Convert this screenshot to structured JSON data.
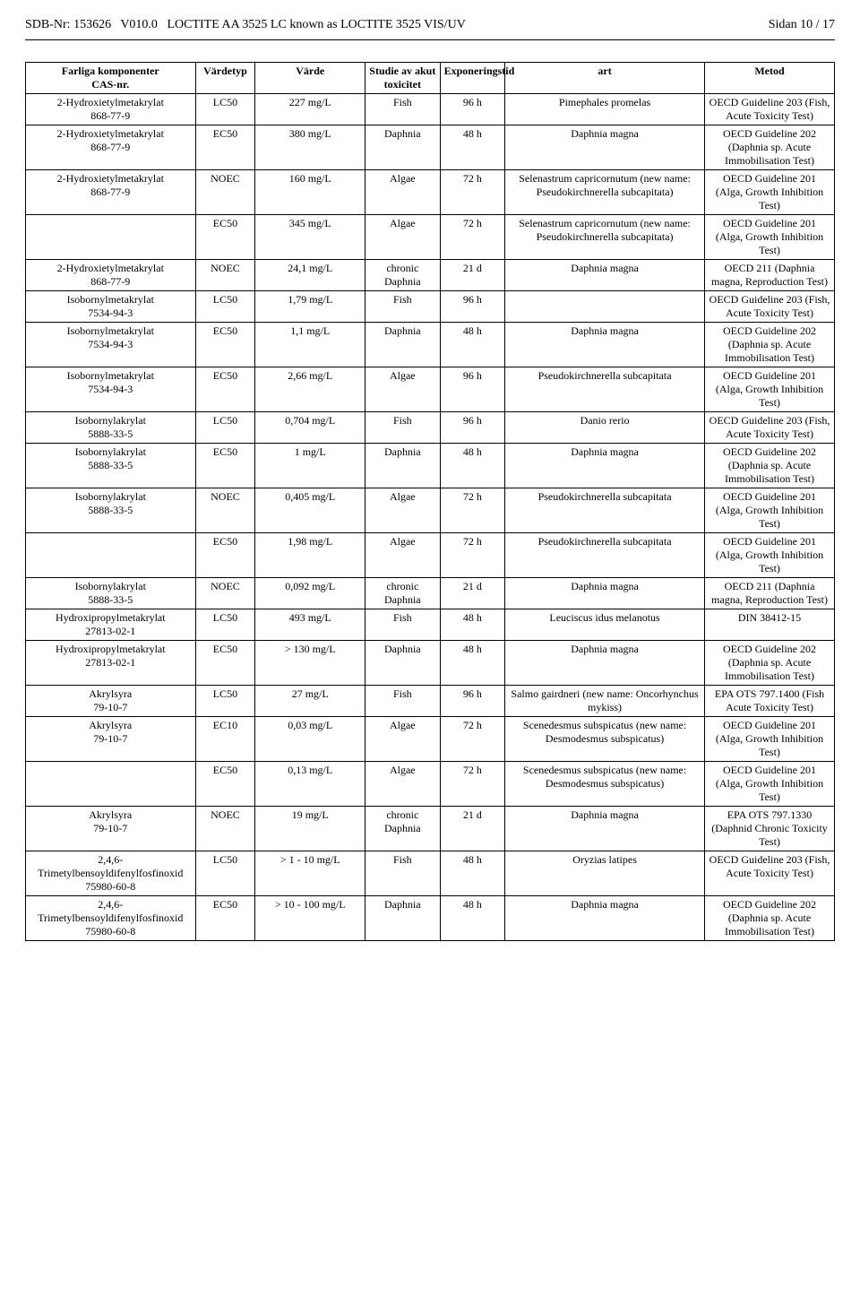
{
  "header": {
    "sdb_label": "SDB-Nr:",
    "sdb_nr": "153626",
    "version": "V010.0",
    "product": "LOCTITE AA 3525 LC known as  LOCTITE 3525 VIS/UV",
    "page_label": "Sidan 10 / 17"
  },
  "table": {
    "headers": {
      "comp": "Farliga komponenter\nCAS-nr.",
      "vtype": "Värdetyp",
      "value": "Värde",
      "study": "Studie av akut toxicitet",
      "exp": "Exponeringstid",
      "art": "art",
      "method": "Metod"
    },
    "rows": [
      {
        "comp": "2-Hydroxietylmetakrylat\n868-77-9",
        "vtype": "LC50",
        "value": "227 mg/L",
        "study": "Fish",
        "exp": "96 h",
        "art": "Pimephales promelas",
        "method": "OECD Guideline 203 (Fish, Acute Toxicity Test)"
      },
      {
        "comp": "2-Hydroxietylmetakrylat\n868-77-9",
        "vtype": "EC50",
        "value": "380 mg/L",
        "study": "Daphnia",
        "exp": "48 h",
        "art": "Daphnia magna",
        "method": "OECD Guideline 202 (Daphnia sp. Acute Immobilisation Test)"
      },
      {
        "comp": "2-Hydroxietylmetakrylat\n868-77-9",
        "vtype": "NOEC",
        "value": "160 mg/L",
        "study": "Algae",
        "exp": "72 h",
        "art": "Selenastrum capricornutum (new name: Pseudokirchnerella subcapitata)",
        "method": "OECD Guideline 201 (Alga, Growth Inhibition Test)"
      },
      {
        "comp": "",
        "vtype": "EC50",
        "value": "345 mg/L",
        "study": "Algae",
        "exp": "72 h",
        "art": "Selenastrum capricornutum (new name: Pseudokirchnerella subcapitata)",
        "method": "OECD Guideline 201 (Alga, Growth Inhibition Test)"
      },
      {
        "comp": "2-Hydroxietylmetakrylat\n868-77-9",
        "vtype": "NOEC",
        "value": "24,1 mg/L",
        "study": "chronic Daphnia",
        "exp": "21 d",
        "art": "Daphnia magna",
        "method": "OECD 211 (Daphnia magna, Reproduction Test)"
      },
      {
        "comp": "Isobornylmetakrylat\n7534-94-3",
        "vtype": "LC50",
        "value": "1,79 mg/L",
        "study": "Fish",
        "exp": "96 h",
        "art": "",
        "method": "OECD Guideline 203 (Fish, Acute Toxicity Test)"
      },
      {
        "comp": "Isobornylmetakrylat\n7534-94-3",
        "vtype": "EC50",
        "value": "1,1 mg/L",
        "study": "Daphnia",
        "exp": "48 h",
        "art": "Daphnia magna",
        "method": "OECD Guideline 202 (Daphnia sp. Acute Immobilisation Test)"
      },
      {
        "comp": "Isobornylmetakrylat\n7534-94-3",
        "vtype": "EC50",
        "value": "2,66 mg/L",
        "study": "Algae",
        "exp": "96 h",
        "art": "Pseudokirchnerella subcapitata",
        "method": "OECD Guideline 201 (Alga, Growth Inhibition Test)"
      },
      {
        "comp": "Isobornylakrylat\n5888-33-5",
        "vtype": "LC50",
        "value": "0,704 mg/L",
        "study": "Fish",
        "exp": "96 h",
        "art": "Danio rerio",
        "method": "OECD Guideline 203 (Fish, Acute Toxicity Test)"
      },
      {
        "comp": "Isobornylakrylat\n5888-33-5",
        "vtype": "EC50",
        "value": "1 mg/L",
        "study": "Daphnia",
        "exp": "48 h",
        "art": "Daphnia magna",
        "method": "OECD Guideline 202 (Daphnia sp. Acute Immobilisation Test)"
      },
      {
        "comp": "Isobornylakrylat\n5888-33-5",
        "vtype": "NOEC",
        "value": "0,405 mg/L",
        "study": "Algae",
        "exp": "72 h",
        "art": "Pseudokirchnerella subcapitata",
        "method": "OECD Guideline 201 (Alga, Growth Inhibition Test)"
      },
      {
        "comp": "",
        "vtype": "EC50",
        "value": "1,98 mg/L",
        "study": "Algae",
        "exp": "72 h",
        "art": "Pseudokirchnerella subcapitata",
        "method": "OECD Guideline 201 (Alga, Growth Inhibition Test)"
      },
      {
        "comp": "Isobornylakrylat\n5888-33-5",
        "vtype": "NOEC",
        "value": "0,092 mg/L",
        "study": "chronic Daphnia",
        "exp": "21 d",
        "art": "Daphnia magna",
        "method": "OECD 211 (Daphnia magna, Reproduction Test)"
      },
      {
        "comp": "Hydroxipropylmetakrylat\n27813-02-1",
        "vtype": "LC50",
        "value": "493 mg/L",
        "study": "Fish",
        "exp": "48 h",
        "art": "Leuciscus idus melanotus",
        "method": "DIN 38412-15"
      },
      {
        "comp": "Hydroxipropylmetakrylat\n27813-02-1",
        "vtype": "EC50",
        "value": "> 130 mg/L",
        "study": "Daphnia",
        "exp": "48 h",
        "art": "Daphnia magna",
        "method": "OECD Guideline 202 (Daphnia sp. Acute Immobilisation Test)"
      },
      {
        "comp": "Akrylsyra\n79-10-7",
        "vtype": "LC50",
        "value": "27 mg/L",
        "study": "Fish",
        "exp": "96 h",
        "art": "Salmo gairdneri (new name: Oncorhynchus mykiss)",
        "method": "EPA OTS 797.1400 (Fish Acute Toxicity Test)"
      },
      {
        "comp": "Akrylsyra\n79-10-7",
        "vtype": "EC10",
        "value": "0,03 mg/L",
        "study": "Algae",
        "exp": "72 h",
        "art": "Scenedesmus subspicatus (new name: Desmodesmus subspicatus)",
        "method": "OECD Guideline 201 (Alga, Growth Inhibition Test)"
      },
      {
        "comp": "",
        "vtype": "EC50",
        "value": "0,13 mg/L",
        "study": "Algae",
        "exp": "72 h",
        "art": "Scenedesmus subspicatus (new name: Desmodesmus subspicatus)",
        "method": "OECD Guideline 201 (Alga, Growth Inhibition Test)"
      },
      {
        "comp": "Akrylsyra\n79-10-7",
        "vtype": "NOEC",
        "value": "19 mg/L",
        "study": "chronic Daphnia",
        "exp": "21 d",
        "art": "Daphnia magna",
        "method": "EPA OTS 797.1330 (Daphnid Chronic Toxicity Test)"
      },
      {
        "comp": "2,4,6-Trimetylbensoyldifenylfosfinoxid\n75980-60-8",
        "vtype": "LC50",
        "value": "> 1 - 10 mg/L",
        "study": "Fish",
        "exp": "48 h",
        "art": "Oryzias latipes",
        "method": "OECD Guideline 203 (Fish, Acute Toxicity Test)"
      },
      {
        "comp": "2,4,6-Trimetylbensoyldifenylfosfinoxid\n75980-60-8",
        "vtype": "EC50",
        "value": "> 10 - 100 mg/L",
        "study": "Daphnia",
        "exp": "48 h",
        "art": "Daphnia magna",
        "method": "OECD Guideline 202 (Daphnia sp. Acute Immobilisation Test)"
      }
    ]
  }
}
